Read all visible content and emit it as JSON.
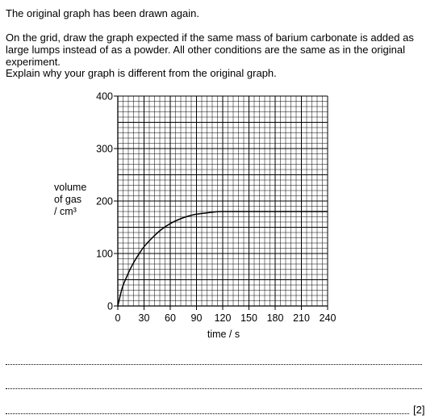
{
  "question": {
    "line1": "The original graph has been drawn again.",
    "line2": "On the grid, draw the graph expected if the same mass of barium carbonate is added as large lumps instead of as a powder. All other conditions are the same as in the original experiment.",
    "line3": "Explain why your graph is different from the original graph.",
    "marks": "[2]"
  },
  "chart_data": {
    "type": "line",
    "xlabel": "time / s",
    "ylabel": [
      "volume",
      "of gas",
      "/ cm³"
    ],
    "xlim": [
      0,
      240
    ],
    "ylim": [
      0,
      400
    ],
    "xticks": [
      0,
      30,
      60,
      90,
      120,
      150,
      180,
      210,
      240
    ],
    "yticks": [
      0,
      100,
      200,
      300,
      400
    ],
    "grid": true,
    "series": [
      {
        "x": [
          0,
          5,
          10,
          15,
          20,
          25,
          30,
          40,
          50,
          60,
          70,
          80,
          90,
          100,
          110,
          120,
          150,
          180,
          210,
          240
        ],
        "y": [
          0,
          34,
          55,
          73,
          88,
          101,
          113,
          131,
          146,
          157,
          165,
          171,
          175,
          177,
          179,
          180,
          180,
          180,
          180,
          180
        ]
      }
    ]
  }
}
